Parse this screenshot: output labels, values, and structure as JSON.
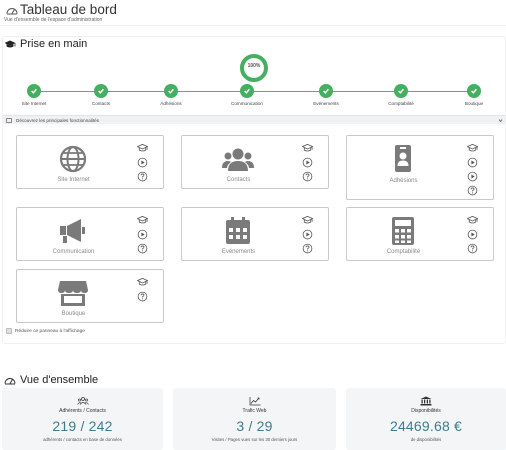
{
  "header": {
    "title": "Tableau de bord",
    "subtitle": "Vue d'ensemble de l'espace d'administration"
  },
  "onboarding": {
    "section_title": "Prise en main",
    "progress_label": "100%",
    "progress_value": 1.0,
    "steps": [
      {
        "label": "Site Internet",
        "done": true
      },
      {
        "label": "Contacts",
        "done": true
      },
      {
        "label": "Adhésions",
        "done": true
      },
      {
        "label": "Communication",
        "done": true
      },
      {
        "label": "Evénements",
        "done": true
      },
      {
        "label": "Comptabilité",
        "done": true
      },
      {
        "label": "Boutique",
        "done": true
      }
    ],
    "discover_label": "Découvrez les principales fonctionnalités",
    "features": [
      {
        "name": "Site Internet",
        "icon": "globe-icon"
      },
      {
        "name": "Contacts",
        "icon": "users-icon"
      },
      {
        "name": "Adhésions",
        "icon": "id-badge-icon"
      },
      {
        "name": "Communication",
        "icon": "megaphone-icon"
      },
      {
        "name": "Evénements",
        "icon": "calendar-icon"
      },
      {
        "name": "Comptabilité",
        "icon": "calculator-icon"
      },
      {
        "name": "Boutique",
        "icon": "store-icon"
      }
    ],
    "reduce_label": "Réduire ce panneau à l'affichage"
  },
  "overview": {
    "section_title": "Vue d'ensemble",
    "cards": [
      {
        "title": "Adhérents / Contacts",
        "value": "219 / 242",
        "note": "adhérents / contacts en base de données",
        "icon": "people-group-icon"
      },
      {
        "title": "Trafic Web",
        "value": "3 / 29",
        "note": "Visites / Pages vues sur les 30 derniers jours",
        "icon": "chart-line-icon"
      },
      {
        "title": "Disponibilités",
        "value": "24469.68 €",
        "note": "de disponibilités",
        "icon": "bank-icon"
      }
    ]
  },
  "colors": {
    "accent_green": "#44b05f",
    "stat_value": "#3d7d8f",
    "icon_grey": "#7a7a7a"
  }
}
